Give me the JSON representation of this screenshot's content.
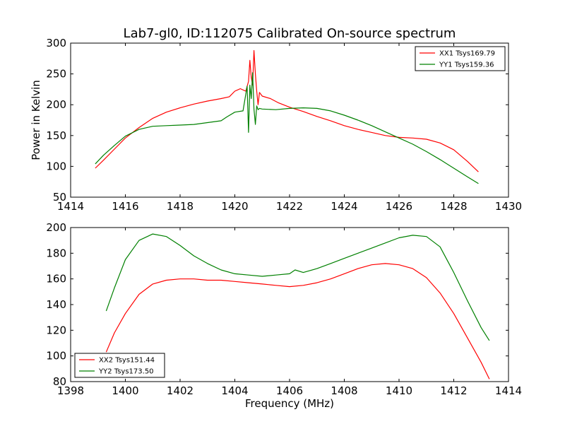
{
  "chart_data": [
    {
      "type": "line",
      "title": "Lab7-gl0, ID:112075 Calibrated On-source spectrum",
      "xlabel": "",
      "ylabel": "Power in Kelvin",
      "xlim": [
        1414,
        1430
      ],
      "ylim": [
        50,
        300
      ],
      "xticks": [
        1414,
        1416,
        1418,
        1420,
        1422,
        1424,
        1426,
        1428,
        1430
      ],
      "yticks": [
        50,
        100,
        150,
        200,
        250,
        300
      ],
      "grid": false,
      "legend_position": "upper right",
      "series": [
        {
          "name": "XX1 Tsys169.79",
          "color": "#ff0000",
          "x": [
            1414.9,
            1415.2,
            1415.6,
            1416.0,
            1416.5,
            1417.0,
            1417.5,
            1418.0,
            1418.5,
            1419.0,
            1419.5,
            1419.8,
            1420.0,
            1420.2,
            1420.4,
            1420.5,
            1420.55,
            1420.6,
            1420.65,
            1420.7,
            1420.75,
            1420.8,
            1420.85,
            1420.9,
            1421.0,
            1421.3,
            1421.6,
            1422.0,
            1422.5,
            1423.0,
            1423.5,
            1424.0,
            1424.5,
            1425.0,
            1425.5,
            1426.0,
            1426.5,
            1427.0,
            1427.5,
            1428.0,
            1428.5,
            1428.9
          ],
          "values": [
            97,
            110,
            128,
            146,
            163,
            178,
            188,
            195,
            201,
            206,
            210,
            213,
            222,
            226,
            222,
            238,
            272,
            245,
            232,
            288,
            250,
            222,
            200,
            220,
            214,
            210,
            203,
            196,
            189,
            181,
            174,
            166,
            160,
            155,
            150,
            147,
            146,
            144,
            138,
            127,
            108,
            91
          ]
        },
        {
          "name": "YY1 Tsys159.36",
          "color": "#008000",
          "x": [
            1414.9,
            1415.2,
            1415.6,
            1416.0,
            1416.5,
            1417.0,
            1417.5,
            1418.0,
            1418.5,
            1419.0,
            1419.5,
            1419.7,
            1420.0,
            1420.3,
            1420.45,
            1420.5,
            1420.55,
            1420.6,
            1420.65,
            1420.7,
            1420.75,
            1420.8,
            1420.85,
            1420.9,
            1421.0,
            1421.5,
            1422.0,
            1422.5,
            1423.0,
            1423.5,
            1424.0,
            1424.5,
            1425.0,
            1425.5,
            1426.0,
            1426.5,
            1427.0,
            1427.5,
            1428.0,
            1428.5,
            1428.9
          ],
          "values": [
            104,
            118,
            134,
            149,
            160,
            165,
            166,
            167,
            168,
            171,
            174,
            180,
            188,
            190,
            230,
            155,
            232,
            210,
            252,
            193,
            168,
            198,
            192,
            194,
            193,
            192,
            194,
            195,
            194,
            190,
            183,
            175,
            166,
            156,
            146,
            136,
            124,
            111,
            97,
            83,
            72
          ]
        }
      ]
    },
    {
      "type": "line",
      "title": "",
      "xlabel": "Frequency (MHz)",
      "ylabel": "",
      "xlim": [
        1398,
        1414
      ],
      "ylim": [
        80,
        200
      ],
      "xticks": [
        1398,
        1400,
        1402,
        1404,
        1406,
        1408,
        1410,
        1412,
        1414
      ],
      "yticks": [
        80,
        100,
        120,
        140,
        160,
        180,
        200
      ],
      "grid": false,
      "legend_position": "lower left",
      "series": [
        {
          "name": "XX2 Tsys151.44",
          "color": "#ff0000",
          "x": [
            1399.3,
            1399.6,
            1400.0,
            1400.5,
            1401.0,
            1401.5,
            1402.0,
            1402.5,
            1403.0,
            1403.5,
            1404.0,
            1404.5,
            1405.0,
            1405.5,
            1406.0,
            1406.5,
            1407.0,
            1407.5,
            1408.0,
            1408.5,
            1409.0,
            1409.5,
            1410.0,
            1410.5,
            1411.0,
            1411.5,
            1412.0,
            1412.5,
            1413.0,
            1413.3
          ],
          "values": [
            103,
            118,
            133,
            148,
            156,
            159,
            160,
            160,
            159,
            159,
            158,
            157,
            156,
            155,
            154,
            155,
            157,
            160,
            164,
            168,
            171,
            172,
            171,
            168,
            161,
            149,
            133,
            114,
            95,
            82
          ]
        },
        {
          "name": "YY2 Tsys173.50",
          "color": "#008000",
          "x": [
            1399.3,
            1399.6,
            1400.0,
            1400.5,
            1401.0,
            1401.5,
            1402.0,
            1402.5,
            1403.0,
            1403.5,
            1404.0,
            1404.5,
            1405.0,
            1405.5,
            1406.0,
            1406.2,
            1406.5,
            1407.0,
            1407.5,
            1408.0,
            1408.5,
            1409.0,
            1409.5,
            1410.0,
            1410.5,
            1411.0,
            1411.5,
            1412.0,
            1412.5,
            1413.0,
            1413.3
          ],
          "values": [
            135,
            153,
            175,
            190,
            195,
            193,
            186,
            178,
            172,
            167,
            164,
            163,
            162,
            163,
            164,
            167,
            165,
            168,
            172,
            176,
            180,
            184,
            188,
            192,
            194,
            193,
            185,
            165,
            143,
            122,
            112
          ]
        }
      ]
    }
  ]
}
